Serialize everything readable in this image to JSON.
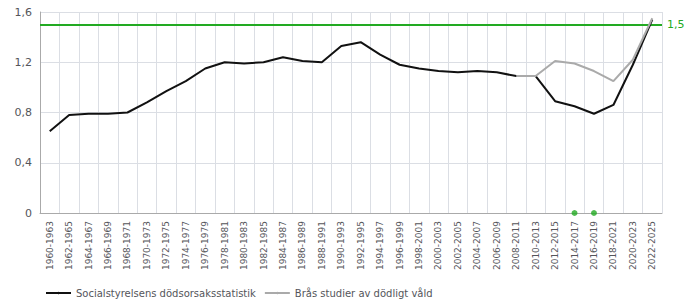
{
  "chart_data": {
    "type": "line",
    "categories": [
      "1960-1963",
      "1962-1965",
      "1964-1967",
      "1966-1969",
      "1968-1971",
      "1970-1973",
      "1972-1975",
      "1974-1977",
      "1976-1979",
      "1978-1981",
      "1980-1983",
      "1982-1985",
      "1984-1987",
      "1986-1989",
      "1988-1991",
      "1990-1993",
      "1992-1995",
      "1994-1997",
      "1996-1999",
      "1998-2001",
      "2000-2003",
      "2002-2005",
      "2004-2007",
      "2006-2009",
      "2008-2011",
      "2010-2013",
      "2012-2015",
      "2014-2017",
      "2016-2019",
      "2018-2021",
      "2020-2023",
      "2022-2025"
    ],
    "series": [
      {
        "name": "Socialstyrelsens dödsorsaksstatistik",
        "type": "line",
        "color": "#111111",
        "values": [
          0.65,
          0.78,
          0.79,
          0.79,
          0.8,
          0.88,
          0.97,
          1.05,
          1.15,
          1.2,
          1.19,
          1.2,
          1.24,
          1.21,
          1.2,
          1.33,
          1.36,
          1.26,
          1.18,
          1.15,
          1.13,
          1.12,
          1.13,
          1.12,
          1.09,
          1.09,
          0.89,
          0.85,
          0.79,
          0.86,
          1.18,
          1.54
        ]
      },
      {
        "name": "Brås studier av dödligt våld",
        "type": "line",
        "color": "#aaaaaa",
        "values": [
          null,
          null,
          null,
          null,
          null,
          null,
          null,
          null,
          null,
          null,
          null,
          null,
          null,
          null,
          null,
          null,
          null,
          null,
          null,
          null,
          null,
          null,
          null,
          null,
          1.09,
          1.09,
          1.21,
          1.19,
          1.13,
          1.05,
          1.22,
          1.55
        ]
      },
      {
        "type": "scatter",
        "color": "#22aa22",
        "marker": "circle",
        "values": [
          null,
          null,
          null,
          null,
          null,
          null,
          null,
          null,
          null,
          null,
          null,
          null,
          null,
          null,
          null,
          null,
          null,
          null,
          null,
          null,
          null,
          null,
          null,
          null,
          null,
          null,
          null,
          0.0,
          0.0,
          null,
          null,
          null
        ]
      }
    ],
    "annotations": [
      {
        "type": "hline",
        "y": 1.5,
        "text": "1,5",
        "color": "#22aa22"
      }
    ],
    "ylim": [
      0,
      1.6
    ],
    "yticks": [
      0,
      {
        "value": 0.4,
        "label": "0,4"
      },
      {
        "value": 0.8,
        "label": "0,8"
      },
      {
        "value": 1.2,
        "label": "1,2"
      },
      {
        "value": 1.6,
        "label": "1,6"
      }
    ],
    "grid": true,
    "legend": "bottom"
  }
}
